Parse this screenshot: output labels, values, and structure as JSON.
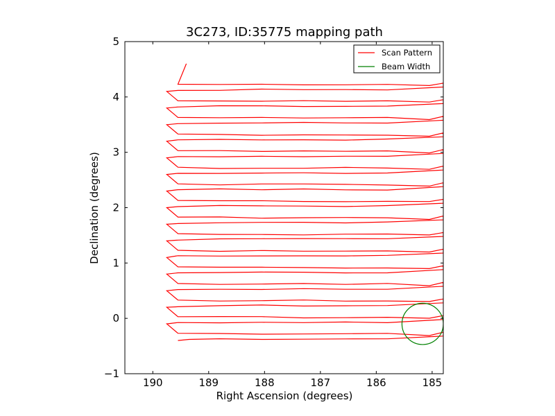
{
  "chart_data": {
    "type": "line",
    "title": "3C273, ID:35775 mapping path",
    "xlabel": "Right Ascension (degrees)",
    "ylabel": "Declination (degrees)",
    "xlim": [
      190.5,
      184.8
    ],
    "ylim": [
      -1,
      5
    ],
    "x_inverted": true,
    "xticks": [
      190,
      189,
      188,
      187,
      186,
      185
    ],
    "xtick_labels": [
      "190",
      "189",
      "188",
      "187",
      "186",
      "185"
    ],
    "yticks": [
      -1,
      0,
      1,
      2,
      3,
      4,
      5
    ],
    "ytick_labels": [
      "−1",
      "0",
      "1",
      "2",
      "3",
      "4",
      "5"
    ],
    "grid": false,
    "legend": {
      "placement": "top-right",
      "entries": [
        {
          "name": "Scan Pattern",
          "color": "#ff0000"
        },
        {
          "name": "Beam Width",
          "color": "#008000"
        }
      ]
    },
    "series": [
      {
        "name": "Scan Pattern",
        "color": "#ff0000",
        "ra_start": 189.75,
        "ra_end": 184.8,
        "dec_start": -0.4,
        "dec_step": 0.15,
        "num_scans": 32,
        "first_scan_ra": 189.55,
        "top_dec": 4.6,
        "top_ra_start": 189.4
      },
      {
        "name": "Beam Width",
        "color": "#008000",
        "shape": "circle",
        "center_ra": 185.17,
        "center_dec": -0.1,
        "radius_deg": 0.37
      }
    ]
  }
}
